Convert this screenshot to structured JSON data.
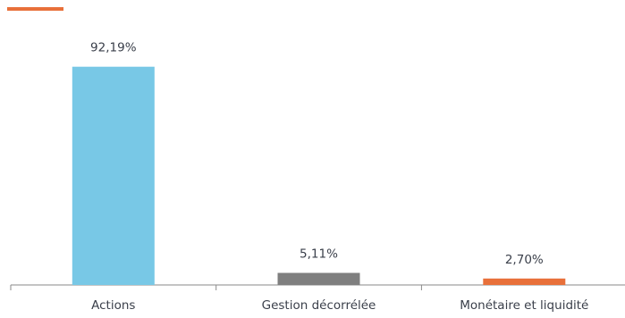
{
  "colors": {
    "accent": "#e8703a",
    "axis": "#8a8a8a",
    "text": "#3a3f4a"
  },
  "chart_data": {
    "type": "bar",
    "title": "",
    "xlabel": "",
    "ylabel": "",
    "ylim": [
      0,
      100
    ],
    "grid": false,
    "legend": "none",
    "categories": [
      "Actions",
      "Gestion décorrélée",
      "Monétaire et liquidité"
    ],
    "values": [
      92.19,
      5.11,
      2.7
    ],
    "value_labels": [
      "92,19%",
      "5,11%",
      "2,70%"
    ],
    "bar_colors": [
      "#78c8e6",
      "#7f7f7f",
      "#e8703a"
    ]
  }
}
